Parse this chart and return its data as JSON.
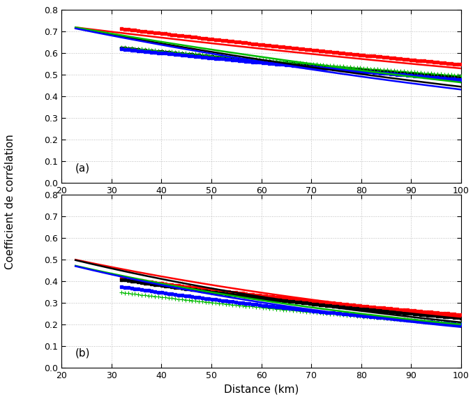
{
  "panel_a": {
    "label": "(a)",
    "solid_lines": {
      "red": {
        "x": [
          22.8,
          100
        ],
        "y": [
          0.72,
          0.53
        ]
      },
      "black": {
        "x": [
          22.8,
          100
        ],
        "y": [
          0.718,
          0.445
        ]
      },
      "green": {
        "x": [
          22.8,
          100
        ],
        "y": [
          0.72,
          0.465
        ]
      },
      "blue": {
        "x": [
          22.8,
          100
        ],
        "y": [
          0.715,
          0.432
        ]
      }
    },
    "dotted_lines": {
      "red": {
        "x": [
          32.0,
          100
        ],
        "y": [
          0.714,
          0.548
        ]
      },
      "black": {
        "x": [
          32.0,
          100
        ],
        "y": [
          0.624,
          0.489
        ]
      },
      "green": {
        "x": [
          32.0,
          100
        ],
        "y": [
          0.628,
          0.496
        ]
      },
      "blue": {
        "x": [
          32.0,
          100
        ],
        "y": [
          0.62,
          0.478
        ]
      }
    }
  },
  "panel_b": {
    "label": "(b)",
    "solid_lines": {
      "red": {
        "x": [
          22.8,
          100
        ],
        "y": [
          0.5,
          0.235
        ]
      },
      "black": {
        "x": [
          22.8,
          100
        ],
        "y": [
          0.498,
          0.21
        ]
      },
      "green": {
        "x": [
          22.8,
          100
        ],
        "y": [
          0.472,
          0.2
        ]
      },
      "blue": {
        "x": [
          22.8,
          100
        ],
        "y": [
          0.47,
          0.188
        ]
      }
    },
    "dotted_lines": {
      "red": {
        "x": [
          32.0,
          100
        ],
        "y": [
          0.415,
          0.245
        ]
      },
      "black": {
        "x": [
          32.0,
          100
        ],
        "y": [
          0.408,
          0.23
        ]
      },
      "green": {
        "x": [
          32.0,
          100
        ],
        "y": [
          0.348,
          0.203
        ]
      },
      "blue": {
        "x": [
          32.0,
          100
        ],
        "y": [
          0.375,
          0.2
        ]
      }
    }
  },
  "colors": {
    "red": "#ff0000",
    "black": "#000000",
    "green": "#00bb00",
    "blue": "#0000ff"
  },
  "xlabel": "Distance (km)",
  "ylabel": "Coefficient de corrélation",
  "xlim": [
    20,
    100
  ],
  "ylim": [
    0,
    0.8
  ],
  "yticks": [
    0,
    0.1,
    0.2,
    0.3,
    0.4,
    0.5,
    0.6,
    0.7,
    0.8
  ],
  "xticks": [
    20,
    30,
    40,
    50,
    60,
    70,
    80,
    90,
    100
  ],
  "background_color": "#ffffff",
  "grid_color": "#bbbbbb"
}
